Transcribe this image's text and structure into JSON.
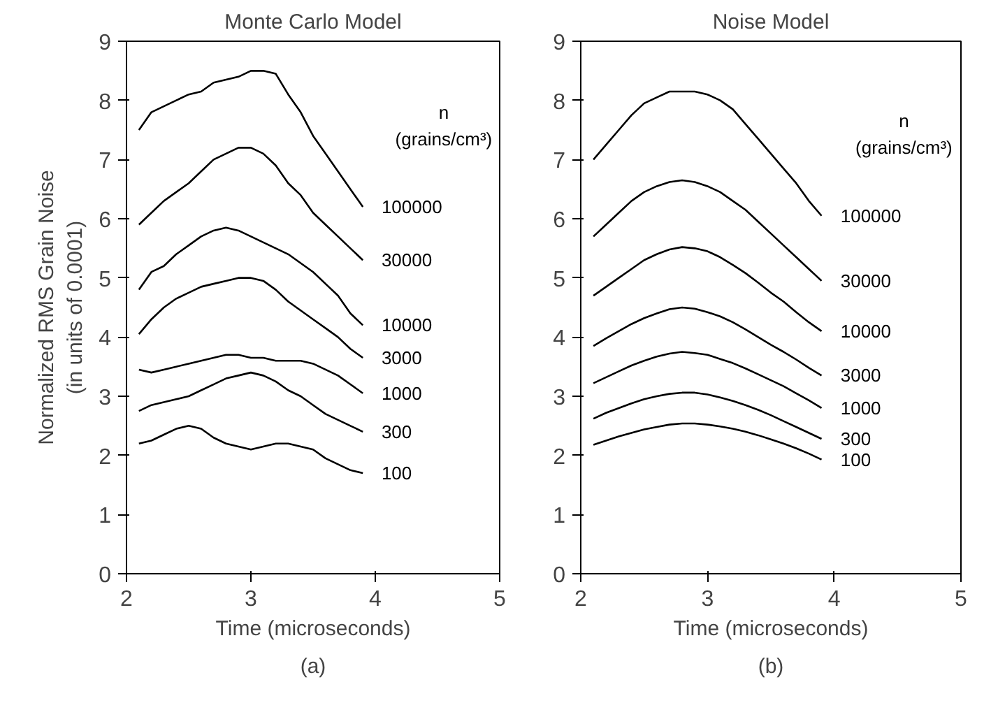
{
  "chart_data": [
    {
      "type": "line",
      "title": "Monte Carlo Model",
      "xlabel": "Time (microseconds)",
      "ylabel": "Normalized RMS Grain Noise\n(in units of 0.0001)",
      "legend_title": "n (grains/cm³)",
      "annotations": [
        "(a)"
      ],
      "x": [
        2.1,
        2.2,
        2.3,
        2.4,
        2.5,
        2.6,
        2.7,
        2.8,
        2.9,
        3.0,
        3.1,
        3.2,
        3.3,
        3.4,
        3.5,
        3.6,
        3.7,
        3.8,
        3.9
      ],
      "xlim": [
        2,
        5
      ],
      "ylim": [
        0,
        9
      ],
      "xticks": [
        2,
        3,
        4,
        5
      ],
      "yticks": [
        0,
        1,
        2,
        3,
        4,
        5,
        6,
        7,
        8,
        9
      ],
      "grid": false,
      "legend": false,
      "marker": "none",
      "line_style": "solid",
      "series": [
        {
          "name": "100000",
          "color": "#000000",
          "values": [
            7.5,
            7.8,
            7.9,
            8.0,
            8.1,
            8.15,
            8.3,
            8.35,
            8.4,
            8.5,
            8.5,
            8.45,
            8.1,
            7.8,
            7.4,
            7.1,
            6.8,
            6.5,
            6.2
          ]
        },
        {
          "name": "30000",
          "color": "#000000",
          "values": [
            5.9,
            6.1,
            6.3,
            6.45,
            6.6,
            6.8,
            7.0,
            7.1,
            7.2,
            7.2,
            7.1,
            6.9,
            6.6,
            6.4,
            6.1,
            5.9,
            5.7,
            5.5,
            5.3
          ]
        },
        {
          "name": "10000",
          "color": "#000000",
          "values": [
            4.8,
            5.1,
            5.2,
            5.4,
            5.55,
            5.7,
            5.8,
            5.85,
            5.8,
            5.7,
            5.6,
            5.5,
            5.4,
            5.25,
            5.1,
            4.9,
            4.7,
            4.4,
            4.2
          ]
        },
        {
          "name": "3000",
          "color": "#000000",
          "values": [
            4.05,
            4.3,
            4.5,
            4.65,
            4.75,
            4.85,
            4.9,
            4.95,
            5.0,
            5.0,
            4.95,
            4.8,
            4.6,
            4.45,
            4.3,
            4.15,
            4.0,
            3.8,
            3.65
          ]
        },
        {
          "name": "1000",
          "color": "#000000",
          "values": [
            3.45,
            3.4,
            3.45,
            3.5,
            3.55,
            3.6,
            3.65,
            3.7,
            3.7,
            3.65,
            3.65,
            3.6,
            3.6,
            3.6,
            3.55,
            3.45,
            3.35,
            3.2,
            3.05
          ]
        },
        {
          "name": "300",
          "color": "#000000",
          "values": [
            2.75,
            2.85,
            2.9,
            2.95,
            3.0,
            3.1,
            3.2,
            3.3,
            3.35,
            3.4,
            3.35,
            3.25,
            3.1,
            3.0,
            2.85,
            2.7,
            2.6,
            2.5,
            2.4
          ]
        },
        {
          "name": "100",
          "color": "#000000",
          "values": [
            2.2,
            2.25,
            2.35,
            2.45,
            2.5,
            2.45,
            2.3,
            2.2,
            2.15,
            2.1,
            2.15,
            2.2,
            2.2,
            2.15,
            2.1,
            1.95,
            1.85,
            1.75,
            1.7
          ]
        }
      ]
    },
    {
      "type": "line",
      "title": "Noise Model",
      "xlabel": "Time (microseconds)",
      "legend_title": "n (grains/cm³)",
      "annotations": [
        "(b)"
      ],
      "x": [
        2.1,
        2.2,
        2.3,
        2.4,
        2.5,
        2.6,
        2.7,
        2.8,
        2.9,
        3.0,
        3.1,
        3.2,
        3.3,
        3.4,
        3.5,
        3.6,
        3.7,
        3.8,
        3.9
      ],
      "xlim": [
        2,
        5
      ],
      "ylim": [
        0,
        9
      ],
      "xticks": [
        2,
        3,
        4,
        5
      ],
      "yticks": [
        0,
        1,
        2,
        3,
        4,
        5,
        6,
        7,
        8,
        9
      ],
      "grid": false,
      "legend": false,
      "marker": "none",
      "line_style": "solid",
      "series": [
        {
          "name": "100000",
          "color": "#000000",
          "values": [
            7.0,
            7.25,
            7.5,
            7.75,
            7.95,
            8.05,
            8.15,
            8.15,
            8.15,
            8.1,
            8.0,
            7.85,
            7.6,
            7.35,
            7.1,
            6.85,
            6.6,
            6.3,
            6.05
          ]
        },
        {
          "name": "30000",
          "color": "#000000",
          "values": [
            5.7,
            5.9,
            6.1,
            6.3,
            6.45,
            6.55,
            6.62,
            6.65,
            6.62,
            6.55,
            6.45,
            6.3,
            6.15,
            5.95,
            5.75,
            5.55,
            5.35,
            5.15,
            4.95
          ]
        },
        {
          "name": "10000",
          "color": "#000000",
          "values": [
            4.7,
            4.85,
            5.0,
            5.15,
            5.3,
            5.4,
            5.48,
            5.52,
            5.5,
            5.45,
            5.35,
            5.22,
            5.08,
            4.92,
            4.75,
            4.6,
            4.42,
            4.25,
            4.1
          ]
        },
        {
          "name": "3000",
          "color": "#000000",
          "values": [
            3.85,
            3.98,
            4.1,
            4.22,
            4.32,
            4.4,
            4.47,
            4.5,
            4.48,
            4.42,
            4.35,
            4.25,
            4.13,
            4.0,
            3.87,
            3.75,
            3.62,
            3.48,
            3.35
          ]
        },
        {
          "name": "1000",
          "color": "#000000",
          "values": [
            3.22,
            3.32,
            3.42,
            3.52,
            3.6,
            3.67,
            3.72,
            3.75,
            3.73,
            3.7,
            3.63,
            3.56,
            3.47,
            3.37,
            3.27,
            3.17,
            3.05,
            2.93,
            2.8
          ]
        },
        {
          "name": "300",
          "color": "#000000",
          "values": [
            2.62,
            2.72,
            2.8,
            2.88,
            2.95,
            3.0,
            3.04,
            3.06,
            3.06,
            3.03,
            2.98,
            2.92,
            2.85,
            2.77,
            2.68,
            2.58,
            2.48,
            2.38,
            2.28
          ]
        },
        {
          "name": "100",
          "color": "#000000",
          "values": [
            2.18,
            2.25,
            2.32,
            2.38,
            2.44,
            2.48,
            2.52,
            2.54,
            2.54,
            2.52,
            2.49,
            2.45,
            2.4,
            2.34,
            2.27,
            2.2,
            2.12,
            2.03,
            1.93
          ]
        }
      ]
    }
  ]
}
